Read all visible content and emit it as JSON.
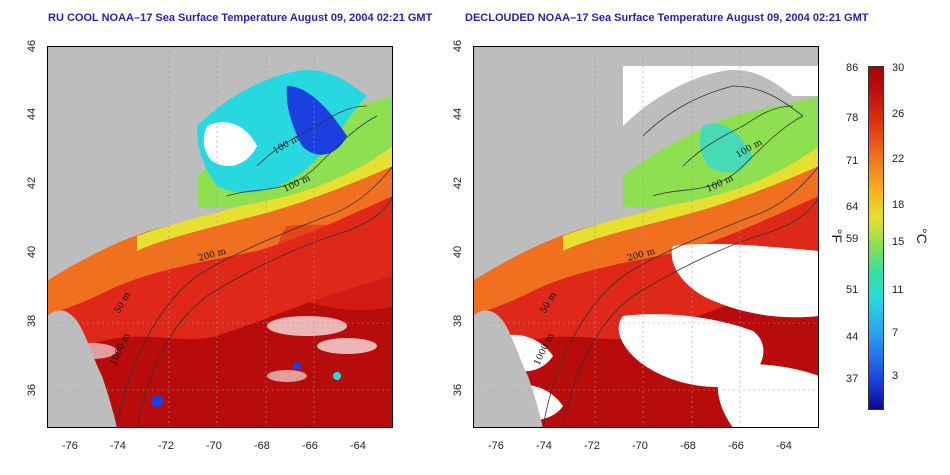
{
  "titles": {
    "left": "RU COOL NOAA–17 Sea Surface Temperature August 09, 2004 02:21 GMT",
    "right": "DECLOUDED NOAA–17 Sea Surface Temperature August 09, 2004 02:21 GMT"
  },
  "axes": {
    "lat_ticks": [
      "46",
      "44",
      "42",
      "40",
      "38",
      "36"
    ],
    "lon_ticks": [
      "-76",
      "-74",
      "-72",
      "-70",
      "-68",
      "-66",
      "-64"
    ]
  },
  "contours": {
    "labels_left": [
      "100 m",
      "100 m",
      "200 m",
      "50 m",
      "1000 m"
    ],
    "labels_right": [
      "100 m",
      "100 m",
      "200 m",
      "50 m",
      "1000 m"
    ]
  },
  "colorbar": {
    "fahrenheit_ticks": [
      "86",
      "78",
      "71",
      "64",
      "59",
      "51",
      "44",
      "37"
    ],
    "celsius_ticks": [
      "30",
      "26",
      "22",
      "18",
      "15",
      "11",
      "7",
      "3"
    ],
    "unit_f": "°F",
    "unit_c": "°C"
  },
  "colors": {
    "land": "#bdbdbd",
    "cloud": "#ffffff",
    "warm": "#e0281a",
    "hot": "#b80c0c",
    "orange": "#f07020",
    "yellow": "#e6e030",
    "green": "#8ee050",
    "cyan": "#28d8e0",
    "blue": "#1b3fe0",
    "title": "#2b1fa8"
  }
}
